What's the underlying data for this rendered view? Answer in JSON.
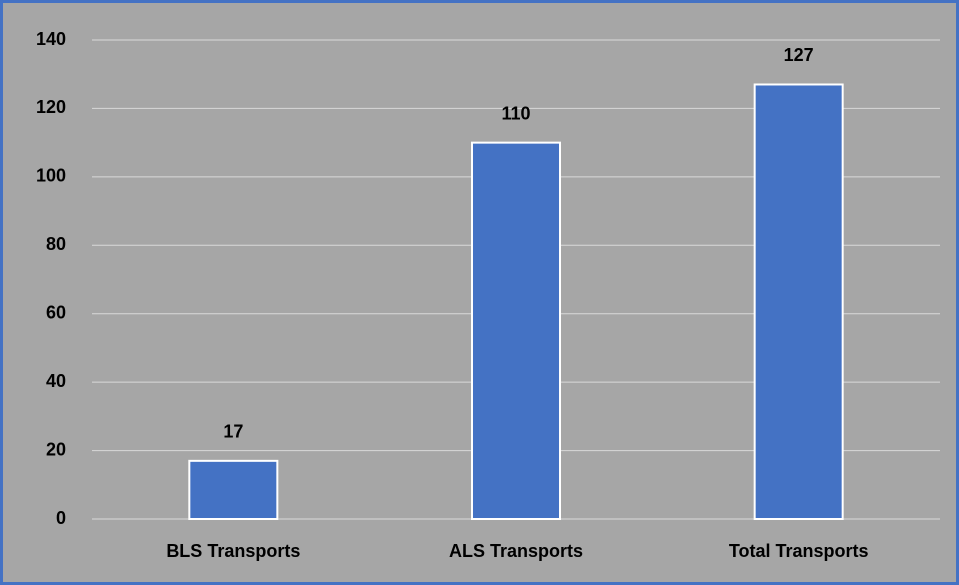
{
  "chart_data": {
    "type": "bar",
    "categories": [
      "BLS Transports",
      "ALS Transports",
      "Total Transports"
    ],
    "values": [
      17,
      110,
      127
    ],
    "color": "#4472c4",
    "ylim": [
      0,
      140
    ],
    "yticks": [
      0,
      20,
      40,
      60,
      80,
      100,
      120,
      140
    ],
    "grid": true,
    "data_labels": true
  }
}
